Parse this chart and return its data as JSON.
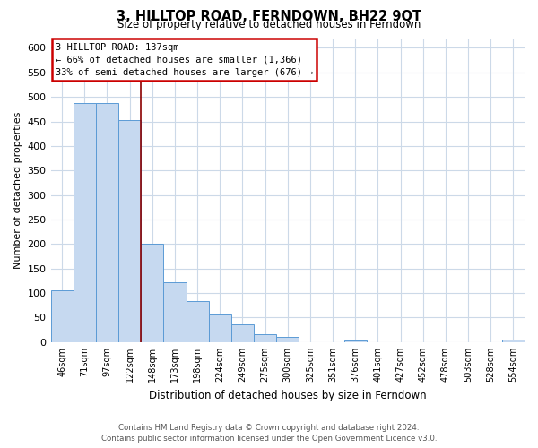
{
  "title": "3, HILLTOP ROAD, FERNDOWN, BH22 9QT",
  "subtitle": "Size of property relative to detached houses in Ferndown",
  "xlabel": "Distribution of detached houses by size in Ferndown",
  "ylabel": "Number of detached properties",
  "bar_labels": [
    "46sqm",
    "71sqm",
    "97sqm",
    "122sqm",
    "148sqm",
    "173sqm",
    "198sqm",
    "224sqm",
    "249sqm",
    "275sqm",
    "300sqm",
    "325sqm",
    "351sqm",
    "376sqm",
    "401sqm",
    "427sqm",
    "452sqm",
    "478sqm",
    "503sqm",
    "528sqm",
    "554sqm"
  ],
  "bar_values": [
    105,
    488,
    488,
    453,
    200,
    122,
    83,
    57,
    36,
    16,
    10,
    0,
    0,
    3,
    0,
    0,
    0,
    0,
    0,
    0,
    5
  ],
  "bar_color": "#c6d9f0",
  "bar_edge_color": "#5b9bd5",
  "ylim": [
    0,
    620
  ],
  "yticks": [
    0,
    50,
    100,
    150,
    200,
    250,
    300,
    350,
    400,
    450,
    500,
    550,
    600
  ],
  "annotation_title": "3 HILLTOP ROAD: 137sqm",
  "annotation_line1": "← 66% of detached houses are smaller (1,366)",
  "annotation_line2": "33% of semi-detached houses are larger (676) →",
  "annotation_box_facecolor": "#ffffff",
  "annotation_box_edgecolor": "#cc0000",
  "property_line_color": "#8b0000",
  "property_line_x": 3.5,
  "background_color": "#ffffff",
  "grid_color": "#ccd9e8",
  "footer_line1": "Contains HM Land Registry data © Crown copyright and database right 2024.",
  "footer_line2": "Contains public sector information licensed under the Open Government Licence v3.0."
}
